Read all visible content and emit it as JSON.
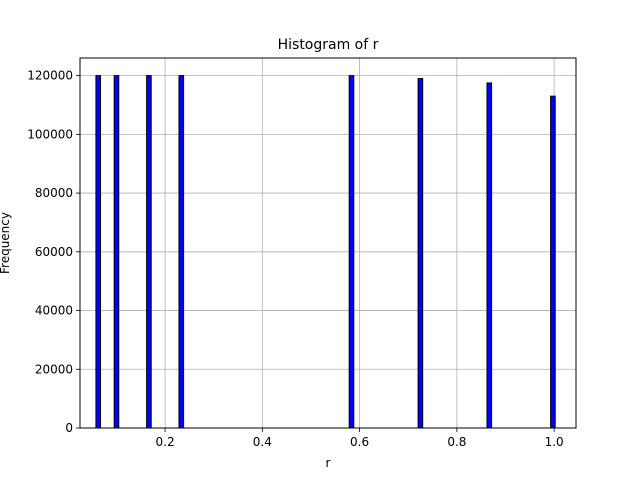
{
  "chart_data": {
    "type": "bar",
    "title": "Histogram of r",
    "xlabel": "r",
    "ylabel": "Frequency",
    "xlim": [
      0.025,
      1.045
    ],
    "ylim": [
      0,
      126000
    ],
    "grid": true,
    "bar_color": "#0000ff",
    "edge_color": "#000000",
    "bin_width": 0.0095,
    "bins": [
      {
        "x": 0.0625,
        "count": 120000
      },
      {
        "x": 0.1,
        "count": 120000
      },
      {
        "x": 0.1667,
        "count": 120000
      },
      {
        "x": 0.2333,
        "count": 120000
      },
      {
        "x": 0.5833,
        "count": 120000
      },
      {
        "x": 0.725,
        "count": 119000
      },
      {
        "x": 0.8667,
        "count": 117500
      },
      {
        "x": 0.9975,
        "count": 113000
      }
    ],
    "xticks": [
      {
        "value": 0.2,
        "label": "0.2"
      },
      {
        "value": 0.4,
        "label": "0.4"
      },
      {
        "value": 0.6,
        "label": "0.6"
      },
      {
        "value": 0.8,
        "label": "0.8"
      },
      {
        "value": 1.0,
        "label": "1.0"
      }
    ],
    "yticks": [
      {
        "value": 0,
        "label": "0"
      },
      {
        "value": 20000,
        "label": "20000"
      },
      {
        "value": 40000,
        "label": "40000"
      },
      {
        "value": 60000,
        "label": "60000"
      },
      {
        "value": 80000,
        "label": "80000"
      },
      {
        "value": 100000,
        "label": "100000"
      },
      {
        "value": 120000,
        "label": "120000"
      }
    ]
  }
}
